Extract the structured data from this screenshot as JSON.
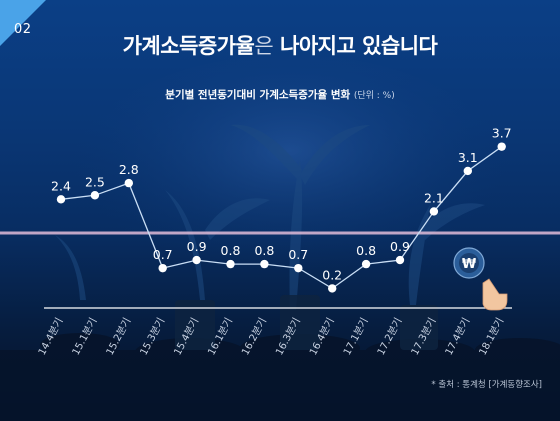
{
  "slide": {
    "number": "02"
  },
  "header": {
    "title_main": "가계소득증가율",
    "title_particle": "은",
    "title_rest": " 나아지고 있습니다"
  },
  "chart_data": {
    "type": "line",
    "title": "분기별 전년동기대비 가계소득증가율 변화",
    "unit": "(단위 : %)",
    "categories": [
      "14.4분기",
      "15.1분기",
      "15.2분기",
      "15.3분기",
      "15.4분기",
      "16.1분기",
      "16.2분기",
      "16.3분기",
      "16.4분기",
      "17.1분기",
      "17.2분기",
      "17.3분기",
      "17.4분기",
      "18.1분기"
    ],
    "values": [
      2.4,
      2.5,
      2.8,
      0.7,
      0.9,
      0.8,
      0.8,
      0.7,
      0.2,
      0.8,
      0.9,
      2.1,
      3.1,
      3.7
    ],
    "line_color": "#ffffff",
    "reference_line_color": "#e2bcd8",
    "baseline_color": "#ffffff"
  },
  "footer": {
    "source": "* 출처 : 통계청 [가계동향조사]"
  },
  "icons": {
    "coin": "won-coin-icon",
    "hand": "pointing-hand-icon",
    "won_symbol": "₩"
  }
}
